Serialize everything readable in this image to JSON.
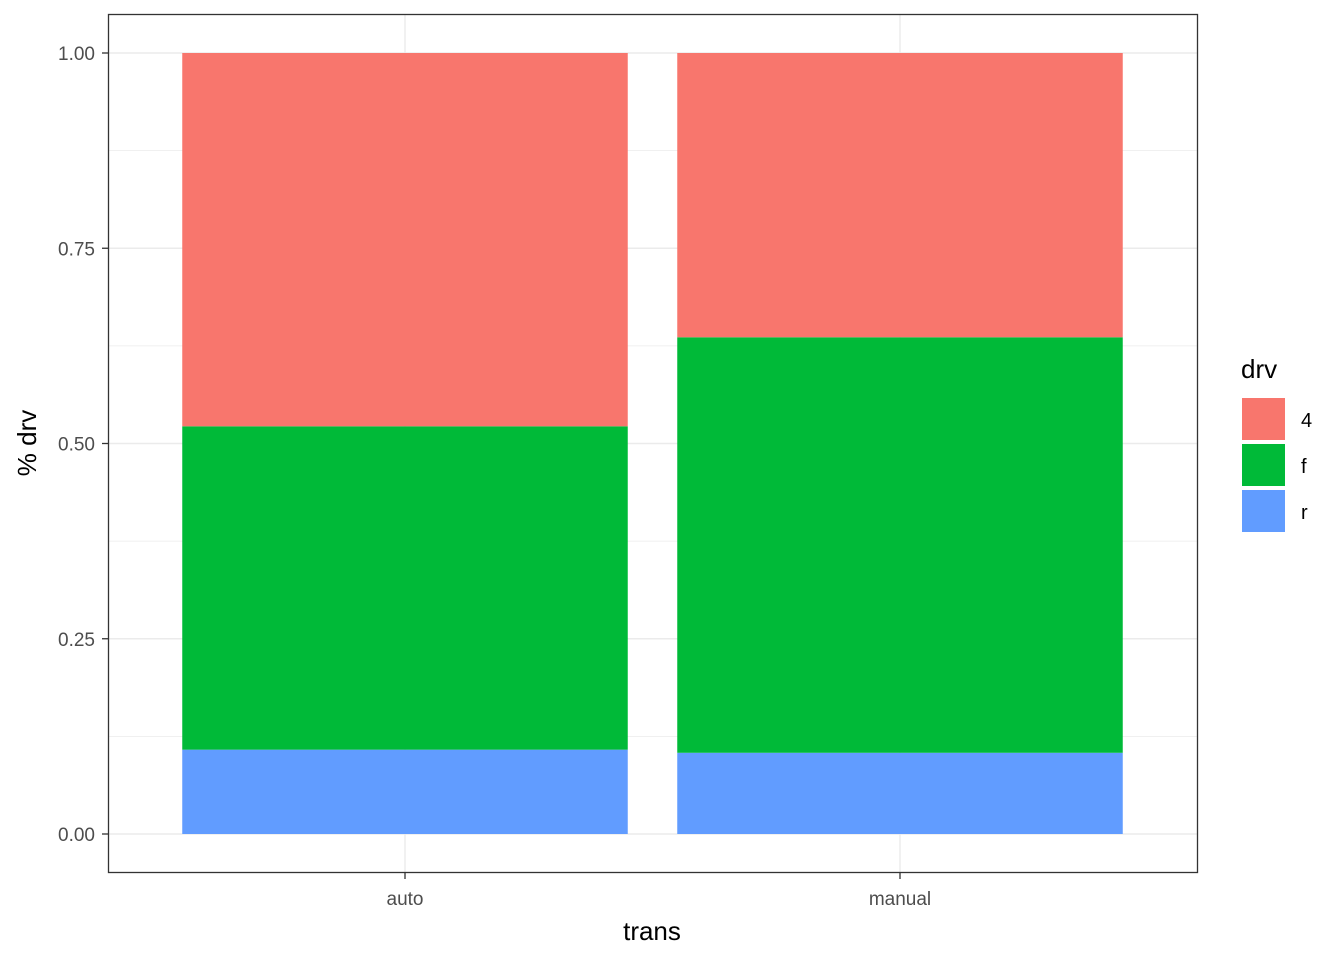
{
  "chart_data": {
    "type": "bar",
    "stacked": "fill",
    "title": "",
    "xlabel": "trans",
    "ylabel": "% drv",
    "categories": [
      "auto",
      "manual"
    ],
    "series": [
      {
        "name": "4",
        "color": "#F8766D",
        "values": [
          0.478,
          0.364
        ]
      },
      {
        "name": "f",
        "color": "#00BA38",
        "values": [
          0.414,
          0.532
        ]
      },
      {
        "name": "r",
        "color": "#619CFF",
        "values": [
          0.108,
          0.104
        ]
      }
    ],
    "ylim": [
      0,
      1
    ],
    "yticks": [
      0,
      0.25,
      0.5,
      0.75,
      1.0
    ],
    "ytick_labels": [
      "0.00",
      "0.25",
      "0.50",
      "0.75",
      "1.00"
    ],
    "grid": true,
    "legend": {
      "title": "drv",
      "position": "right",
      "entries": [
        "4",
        "f",
        "r"
      ]
    }
  }
}
